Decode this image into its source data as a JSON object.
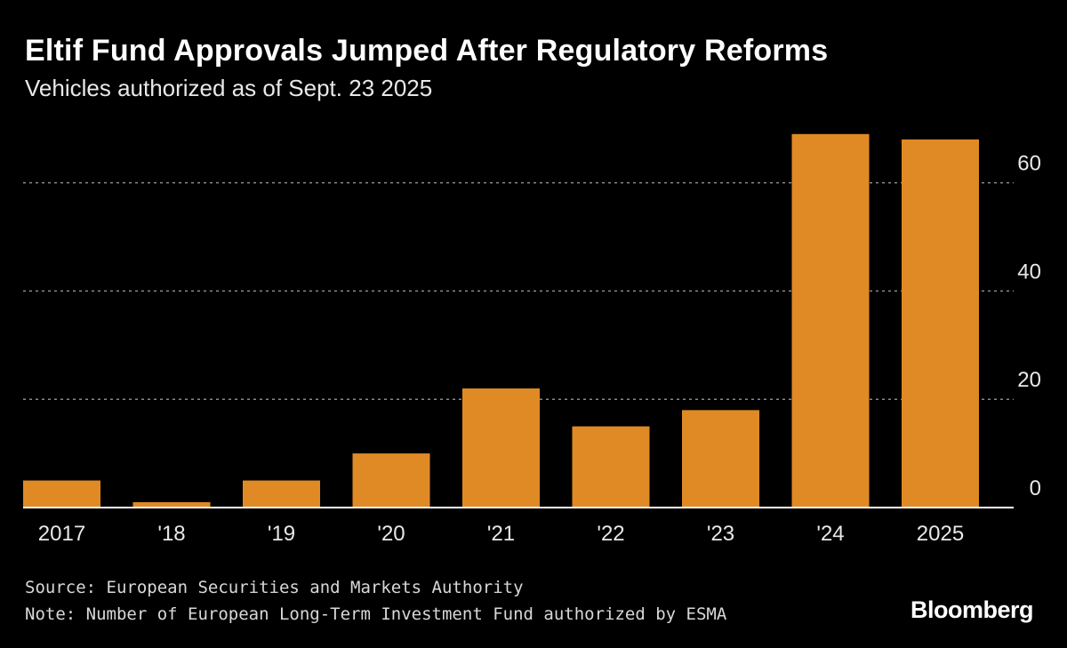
{
  "header": {
    "title": "Eltif Fund Approvals Jumped After Regulatory Reforms",
    "subtitle": "Vehicles authorized as of Sept. 23 2025"
  },
  "footer": {
    "source": "Source: European Securities and Markets Authority",
    "note": "Note: Number of European Long-Term Investment Fund authorized by ESMA",
    "brand": "Bloomberg"
  },
  "colors": {
    "bar": "#E08A25",
    "background": "#000000",
    "grid": "#8a8a8a",
    "text": "#ffffff",
    "axis": "#ffffff"
  },
  "chart_data": {
    "type": "bar",
    "title": "Eltif Fund Approvals Jumped After Regulatory Reforms",
    "subtitle": "Vehicles authorized as of Sept. 23 2025",
    "categories": [
      "2017",
      "'18",
      "'19",
      "'20",
      "'21",
      "'22",
      "'23",
      "'24",
      "2025"
    ],
    "values": [
      5,
      1,
      5,
      10,
      22,
      15,
      18,
      69,
      68
    ],
    "xlabel": "",
    "ylabel": "",
    "ylim": [
      0,
      70
    ],
    "yticks": [
      0,
      20,
      40,
      60
    ],
    "ytick_labels": [
      "0",
      "20",
      "40",
      "60"
    ],
    "y_axis_position": "right",
    "grid": true
  }
}
